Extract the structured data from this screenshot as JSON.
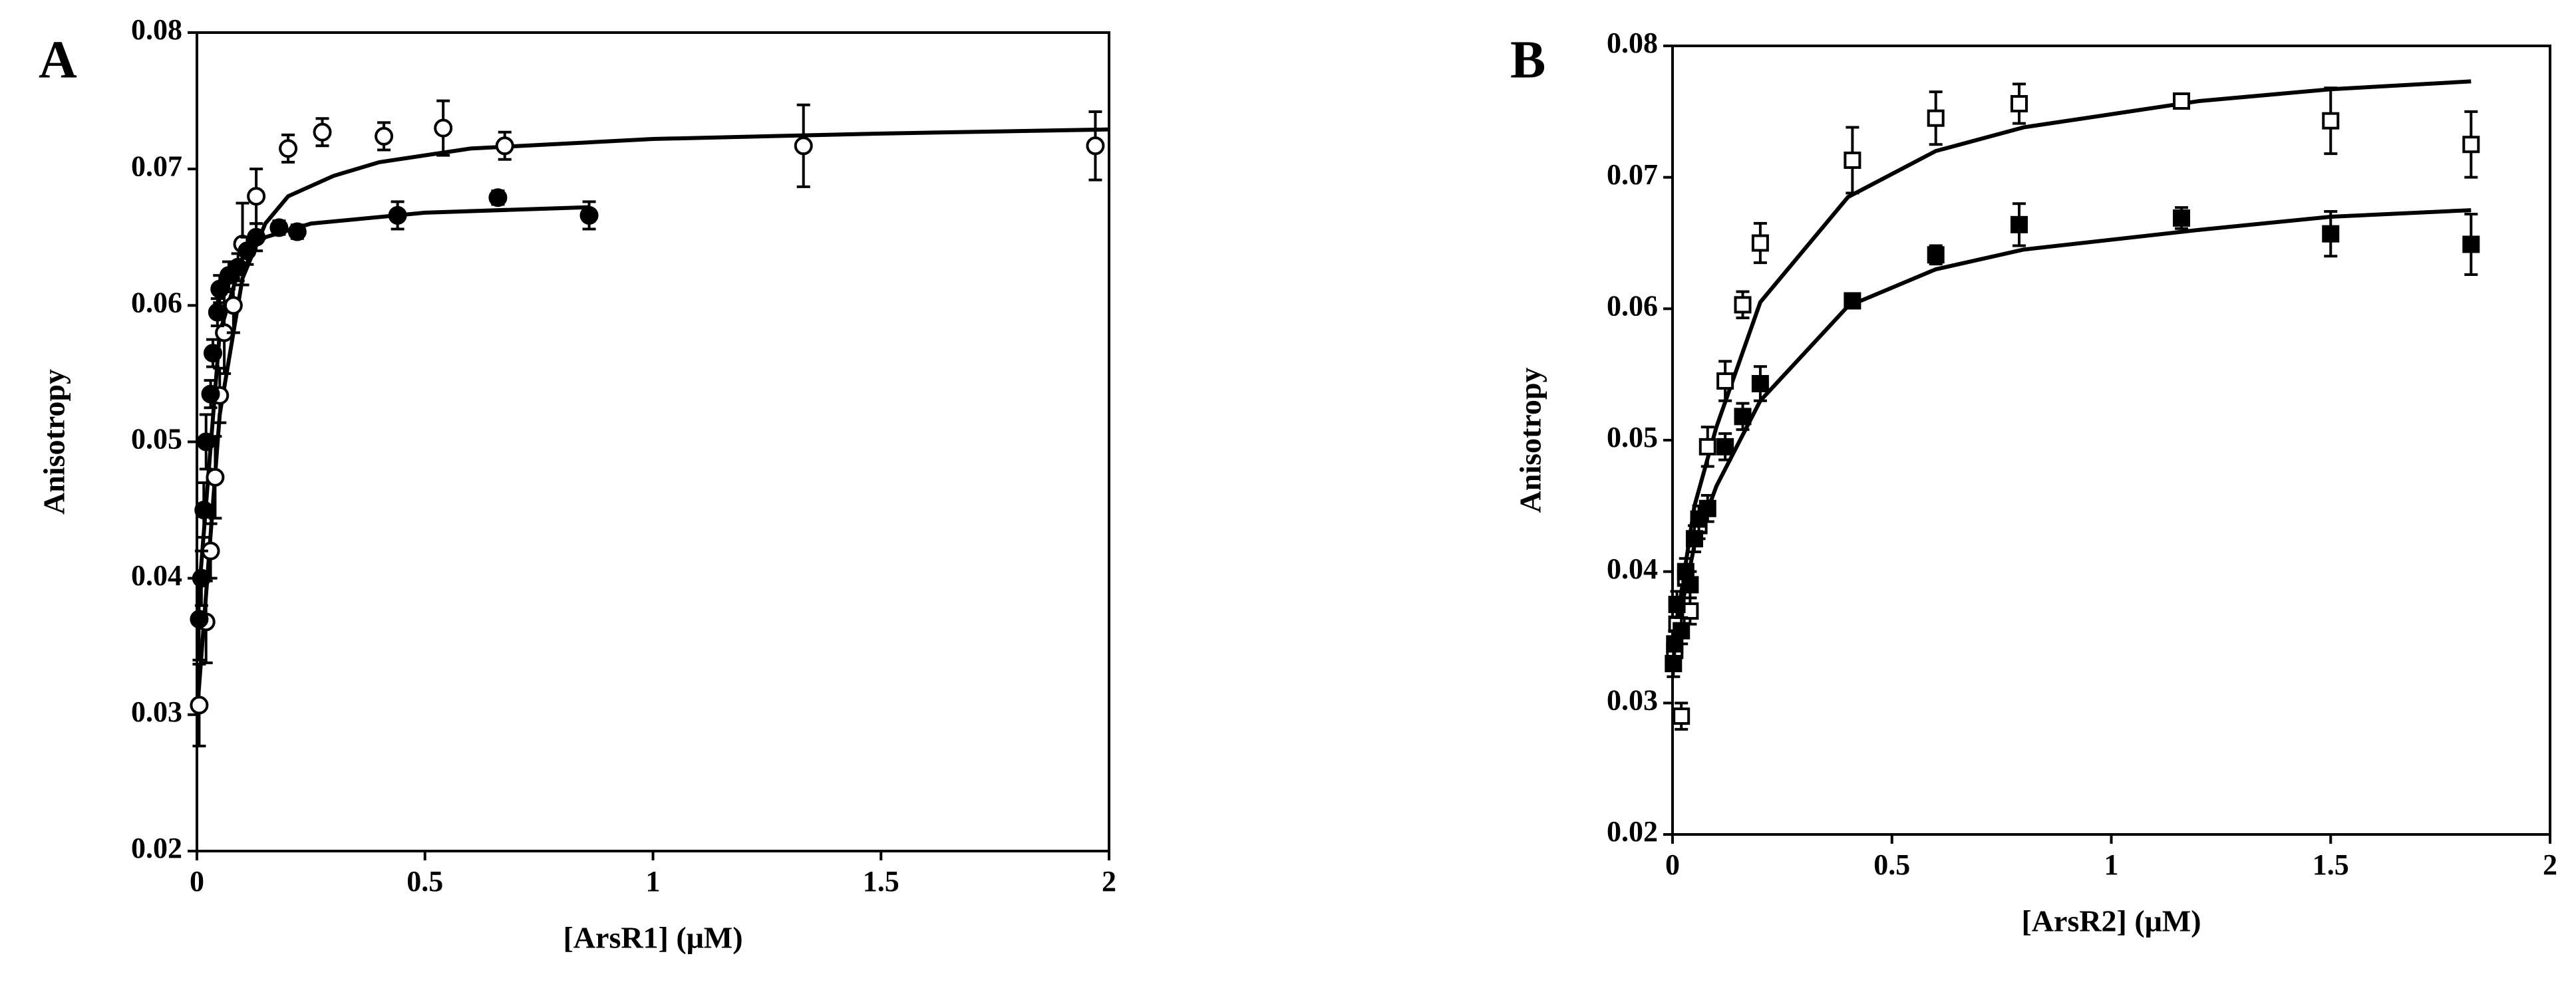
{
  "chart_data": [
    {
      "type": "scatter",
      "label": "A",
      "ylabel": "Anisotropy",
      "xlabel": "[ArsR1] (μM)",
      "xlim": [
        0,
        2
      ],
      "ylim": [
        0.02,
        0.08
      ],
      "xticks": [
        0,
        0.5,
        1,
        1.5,
        2
      ],
      "yticks": [
        0.02,
        0.03,
        0.04,
        0.05,
        0.06,
        0.07,
        0.08
      ],
      "series": [
        {
          "marker": "open-circle",
          "color": "#000000",
          "x": [
            0.005,
            0.02,
            0.03,
            0.04,
            0.05,
            0.06,
            0.08,
            0.1,
            0.13,
            0.2,
            0.275,
            0.41,
            0.54,
            0.675,
            1.33,
            1.97
          ],
          "values": [
            0.0307,
            0.0368,
            0.042,
            0.0474,
            0.0534,
            0.058,
            0.06,
            0.0645,
            0.068,
            0.0715,
            0.0727,
            0.0724,
            0.073,
            0.0717,
            0.0717,
            0.0717
          ],
          "errors": [
            0.003,
            0.003,
            0.002,
            0.003,
            0.002,
            0.003,
            0.002,
            0.003,
            0.002,
            0.001,
            0.001,
            0.001,
            0.002,
            0.001,
            0.003,
            0.0025
          ]
        },
        {
          "marker": "filled-circle",
          "color": "#000000",
          "x": [
            0.005,
            0.01,
            0.015,
            0.02,
            0.03,
            0.035,
            0.045,
            0.05,
            0.07,
            0.09,
            0.11,
            0.13,
            0.18,
            0.22,
            0.44,
            0.66,
            0.86
          ],
          "values": [
            0.037,
            0.04,
            0.045,
            0.05,
            0.0535,
            0.0565,
            0.0595,
            0.0612,
            0.0622,
            0.0628,
            0.064,
            0.065,
            0.0657,
            0.0654,
            0.0666,
            0.0679,
            0.0666
          ],
          "errors": [
            0.003,
            0.002,
            0.002,
            0.002,
            0.001,
            0.001,
            0.001,
            0.001,
            0.001,
            0.001,
            0.001,
            0.001,
            0.0005,
            0.0005,
            0.001,
            0.0005,
            0.001
          ]
        }
      ],
      "lines": [
        {
          "color": "#000000",
          "x": [
            0,
            0.05,
            0.1,
            0.15,
            0.2,
            0.3,
            0.4,
            0.6,
            1,
            1.5,
            2
          ],
          "values": [
            0.03,
            0.052,
            0.062,
            0.066,
            0.068,
            0.0695,
            0.0705,
            0.0715,
            0.0722,
            0.0726,
            0.0729
          ]
        },
        {
          "color": "#000000",
          "x": [
            0,
            0.05,
            0.1,
            0.15,
            0.25,
            0.5,
            0.86
          ],
          "values": [
            0.037,
            0.058,
            0.0635,
            0.065,
            0.066,
            0.0668,
            0.0672
          ]
        }
      ]
    },
    {
      "type": "scatter",
      "label": "B",
      "ylabel": "Anisotropy",
      "xlabel": "[ArsR2] (μM)",
      "xlim": [
        0,
        2
      ],
      "ylim": [
        0.02,
        0.08
      ],
      "xticks": [
        0,
        0.5,
        1,
        1.5,
        2
      ],
      "yticks": [
        0.02,
        0.03,
        0.04,
        0.05,
        0.06,
        0.07,
        0.08
      ],
      "series": [
        {
          "marker": "open-square",
          "color": "#000000",
          "x": [
            0.005,
            0.01,
            0.02,
            0.03,
            0.04,
            0.06,
            0.08,
            0.12,
            0.16,
            0.2,
            0.41,
            0.6,
            0.79,
            1.16,
            1.5,
            1.82
          ],
          "values": [
            0.034,
            0.036,
            0.029,
            0.0395,
            0.037,
            0.0435,
            0.0495,
            0.0545,
            0.0603,
            0.065,
            0.0713,
            0.0745,
            0.0756,
            0.0758,
            0.0743,
            0.0725
          ],
          "errors": [
            0.001,
            0.001,
            0.001,
            0.001,
            0.001,
            0.001,
            0.0015,
            0.0015,
            0.001,
            0.0015,
            0.0025,
            0.002,
            0.0015,
            0.0005,
            0.0025,
            0.0025
          ]
        },
        {
          "marker": "filled-square",
          "color": "#000000",
          "x": [
            0.002,
            0.005,
            0.01,
            0.02,
            0.03,
            0.04,
            0.05,
            0.06,
            0.08,
            0.12,
            0.16,
            0.2,
            0.41,
            0.6,
            0.79,
            1.16,
            1.5,
            1.82
          ],
          "values": [
            0.033,
            0.0345,
            0.0375,
            0.0355,
            0.04,
            0.039,
            0.0425,
            0.044,
            0.0448,
            0.0495,
            0.0518,
            0.0543,
            0.0606,
            0.0641,
            0.0664,
            0.0669,
            0.0657,
            0.0649
          ],
          "errors": [
            0.001,
            0.001,
            0.001,
            0.001,
            0.001,
            0.001,
            0.001,
            0.001,
            0.001,
            0.001,
            0.001,
            0.0013,
            0.0005,
            0.0007,
            0.0016,
            0.0008,
            0.0017,
            0.0023
          ]
        }
      ],
      "lines": [
        {
          "color": "#000000",
          "x": [
            0,
            0.05,
            0.1,
            0.2,
            0.4,
            0.6,
            0.8,
            1.2,
            1.5,
            1.82
          ],
          "values": [
            0.034,
            0.045,
            0.051,
            0.0605,
            0.0685,
            0.072,
            0.0738,
            0.0758,
            0.0767,
            0.0773
          ]
        },
        {
          "color": "#000000",
          "x": [
            0,
            0.05,
            0.1,
            0.2,
            0.4,
            0.6,
            0.8,
            1.2,
            1.5,
            1.82
          ],
          "values": [
            0.034,
            0.042,
            0.0465,
            0.053,
            0.0602,
            0.063,
            0.0645,
            0.066,
            0.067,
            0.0675
          ]
        }
      ]
    }
  ]
}
